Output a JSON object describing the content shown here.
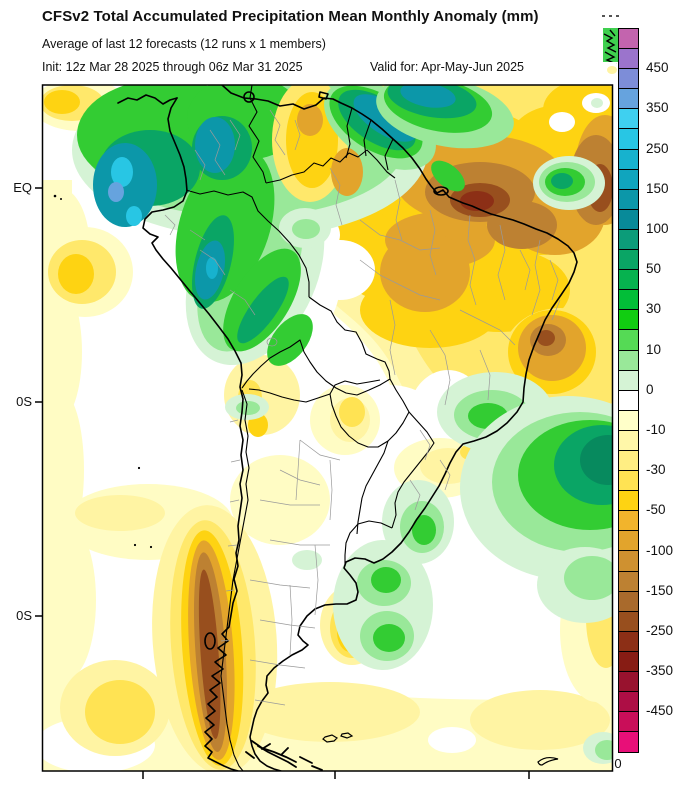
{
  "header": {
    "title": "CFSv2 Total Accumulated Precipitation Mean Monthly Anomaly (mm)",
    "subtitle": "Average of last 12 forecasts (12 runs x 1 members)",
    "init_label": "Init: 12z Mar 28 2025 through 06z Mar 31 2025",
    "valid_label": "Valid for: Apr-May-Jun 2025"
  },
  "map": {
    "y_axis_labels": [
      "EQ",
      "0S",
      "0S"
    ],
    "x_axis_bottom_right_label": "0"
  },
  "colorbar": {
    "labels": [
      "450",
      "350",
      "250",
      "150",
      "100",
      "50",
      "30",
      "10",
      "0",
      "-10",
      "-30",
      "-50",
      "-100",
      "-150",
      "-250",
      "-350",
      "-450"
    ],
    "cells": [
      "#C364AE",
      "#9B74CC",
      "#7D8DD8",
      "#66A3DE",
      "#3FD0F0",
      "#28C6E4",
      "#17B2CE",
      "#10A5BE",
      "#0C97A9",
      "#088A99",
      "#0C9C79",
      "#0AA565",
      "#06B24F",
      "#02BE38",
      "#11CD11",
      "#55DA55",
      "#99E899",
      "#D5F3D5",
      "#FFFFFF",
      "#FFFFC9",
      "#FFF7A9",
      "#FFEE83",
      "#FFE353",
      "#FED312",
      "#F2B42C",
      "#E2A42C",
      "#CF9130",
      "#BD8132",
      "#A96A2C",
      "#984F1E",
      "#8C2F16",
      "#871C14",
      "#98122E",
      "#AD0E45",
      "#C90E59",
      "#E80F78"
    ]
  }
}
